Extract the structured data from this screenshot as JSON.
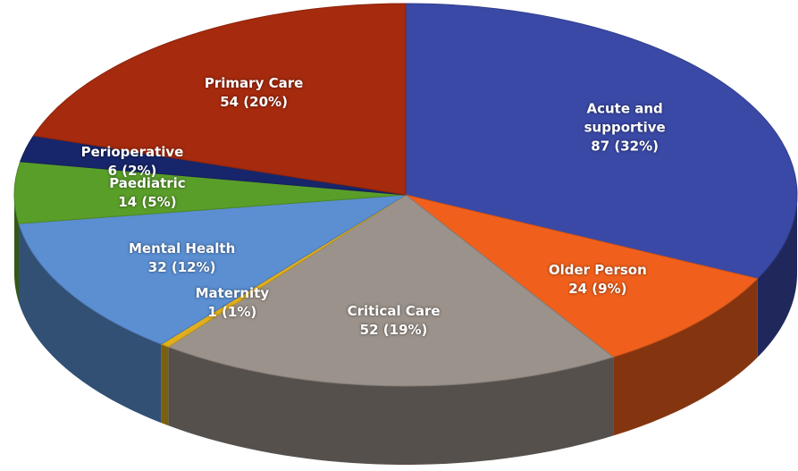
{
  "chart_data": {
    "type": "pie",
    "categories": [
      "Acute and supportive",
      "Older Person",
      "Critical Care",
      "Maternity",
      "Mental Health",
      "Paediatric",
      "Perioperative",
      "Primary Care"
    ],
    "values": [
      87,
      24,
      52,
      1,
      32,
      14,
      6,
      54
    ],
    "value_labels": [
      "87 (32%)",
      "24 (9%)",
      "52 (19%)",
      "1 (1%)",
      "32 (12%)",
      "14 (5%)",
      "6 (2%)",
      "54 (20%)"
    ],
    "colors": [
      "#3a49a6",
      "#f0601c",
      "#9b928b",
      "#e0ae1e",
      "#5b8fd2",
      "#5a9e2a",
      "#17266a",
      "#a52a0e"
    ]
  }
}
